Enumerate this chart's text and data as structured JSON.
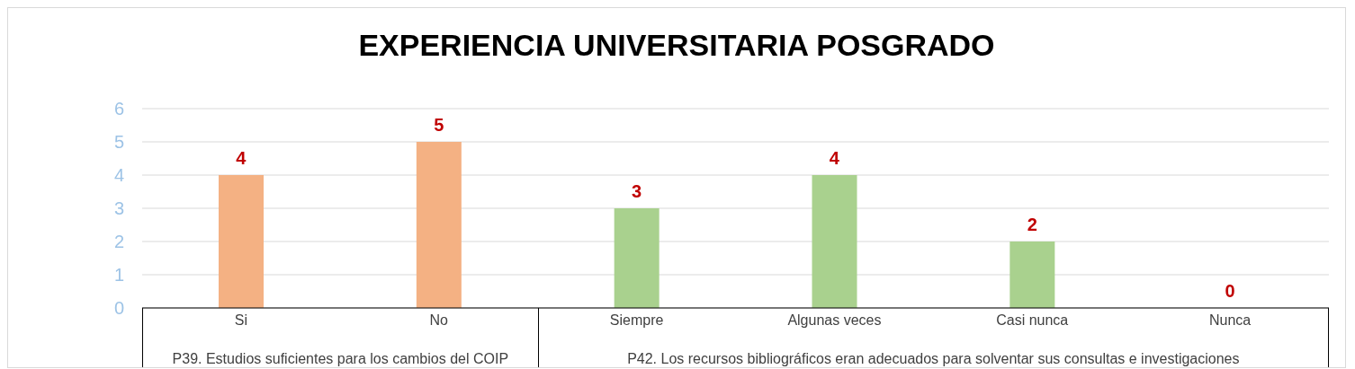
{
  "chart_data": {
    "type": "bar",
    "title": "EXPERIENCIA UNIVERSITARIA POSGRADO",
    "categories": [
      "Si",
      "No",
      "Siempre",
      "Algunas veces",
      "Casi nunca",
      "Nunca"
    ],
    "values": [
      4,
      5,
      3,
      4,
      2,
      0
    ],
    "colors": [
      "#f4b183",
      "#f4b183",
      "#a9d18e",
      "#a9d18e",
      "#a9d18e",
      "#a9d18e"
    ],
    "ylim": [
      0,
      6
    ],
    "yticks": [
      0,
      1,
      2,
      3,
      4,
      5,
      6
    ],
    "grid": "y",
    "data_labels": true,
    "annotations": [
      "P39. Estudios suficientes para los cambios del COIP",
      "P42. Los recursos bibliográficos eran adecuados para solventar sus consultas e investigaciones"
    ]
  }
}
